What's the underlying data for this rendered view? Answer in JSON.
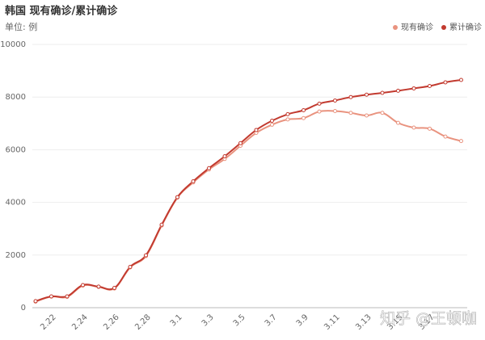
{
  "chart_data": {
    "type": "line",
    "title": "韩国 现有确诊/累计确诊",
    "subtitle": "单位: 例",
    "watermark": "知乎 @王顿咖",
    "categories": [
      null,
      "2.22",
      null,
      "2.24",
      null,
      "2.26",
      null,
      "2.28",
      null,
      "3.1",
      null,
      "3.3",
      null,
      "3.5",
      null,
      "3.7",
      null,
      "3.9",
      null,
      "3.11",
      null,
      "3.13",
      null,
      "3.15",
      null,
      "3.17",
      null,
      null
    ],
    "series": [
      {
        "name": "现有确诊",
        "color": "#e9937f",
        "values": [
          230,
          420,
          410,
          840,
          790,
          730,
          1530,
          1960,
          3120,
          4180,
          4760,
          5250,
          5650,
          6150,
          6640,
          6950,
          7150,
          7200,
          7450,
          7470,
          7400,
          7300,
          7400,
          7020,
          6840,
          6800,
          6500,
          6330
        ]
      },
      {
        "name": "累计确诊",
        "color": "#c23a2f",
        "values": [
          250,
          430,
          430,
          860,
          800,
          750,
          1550,
          1990,
          3150,
          4200,
          4800,
          5300,
          5750,
          6250,
          6750,
          7100,
          7350,
          7500,
          7750,
          7870,
          8000,
          8090,
          8160,
          8240,
          8330,
          8420,
          8560,
          8650
        ]
      }
    ],
    "ylim": [
      0,
      10000
    ],
    "yticks": [
      0,
      2000,
      4000,
      6000,
      8000,
      10000
    ],
    "grid": true,
    "legend": "top-right"
  }
}
